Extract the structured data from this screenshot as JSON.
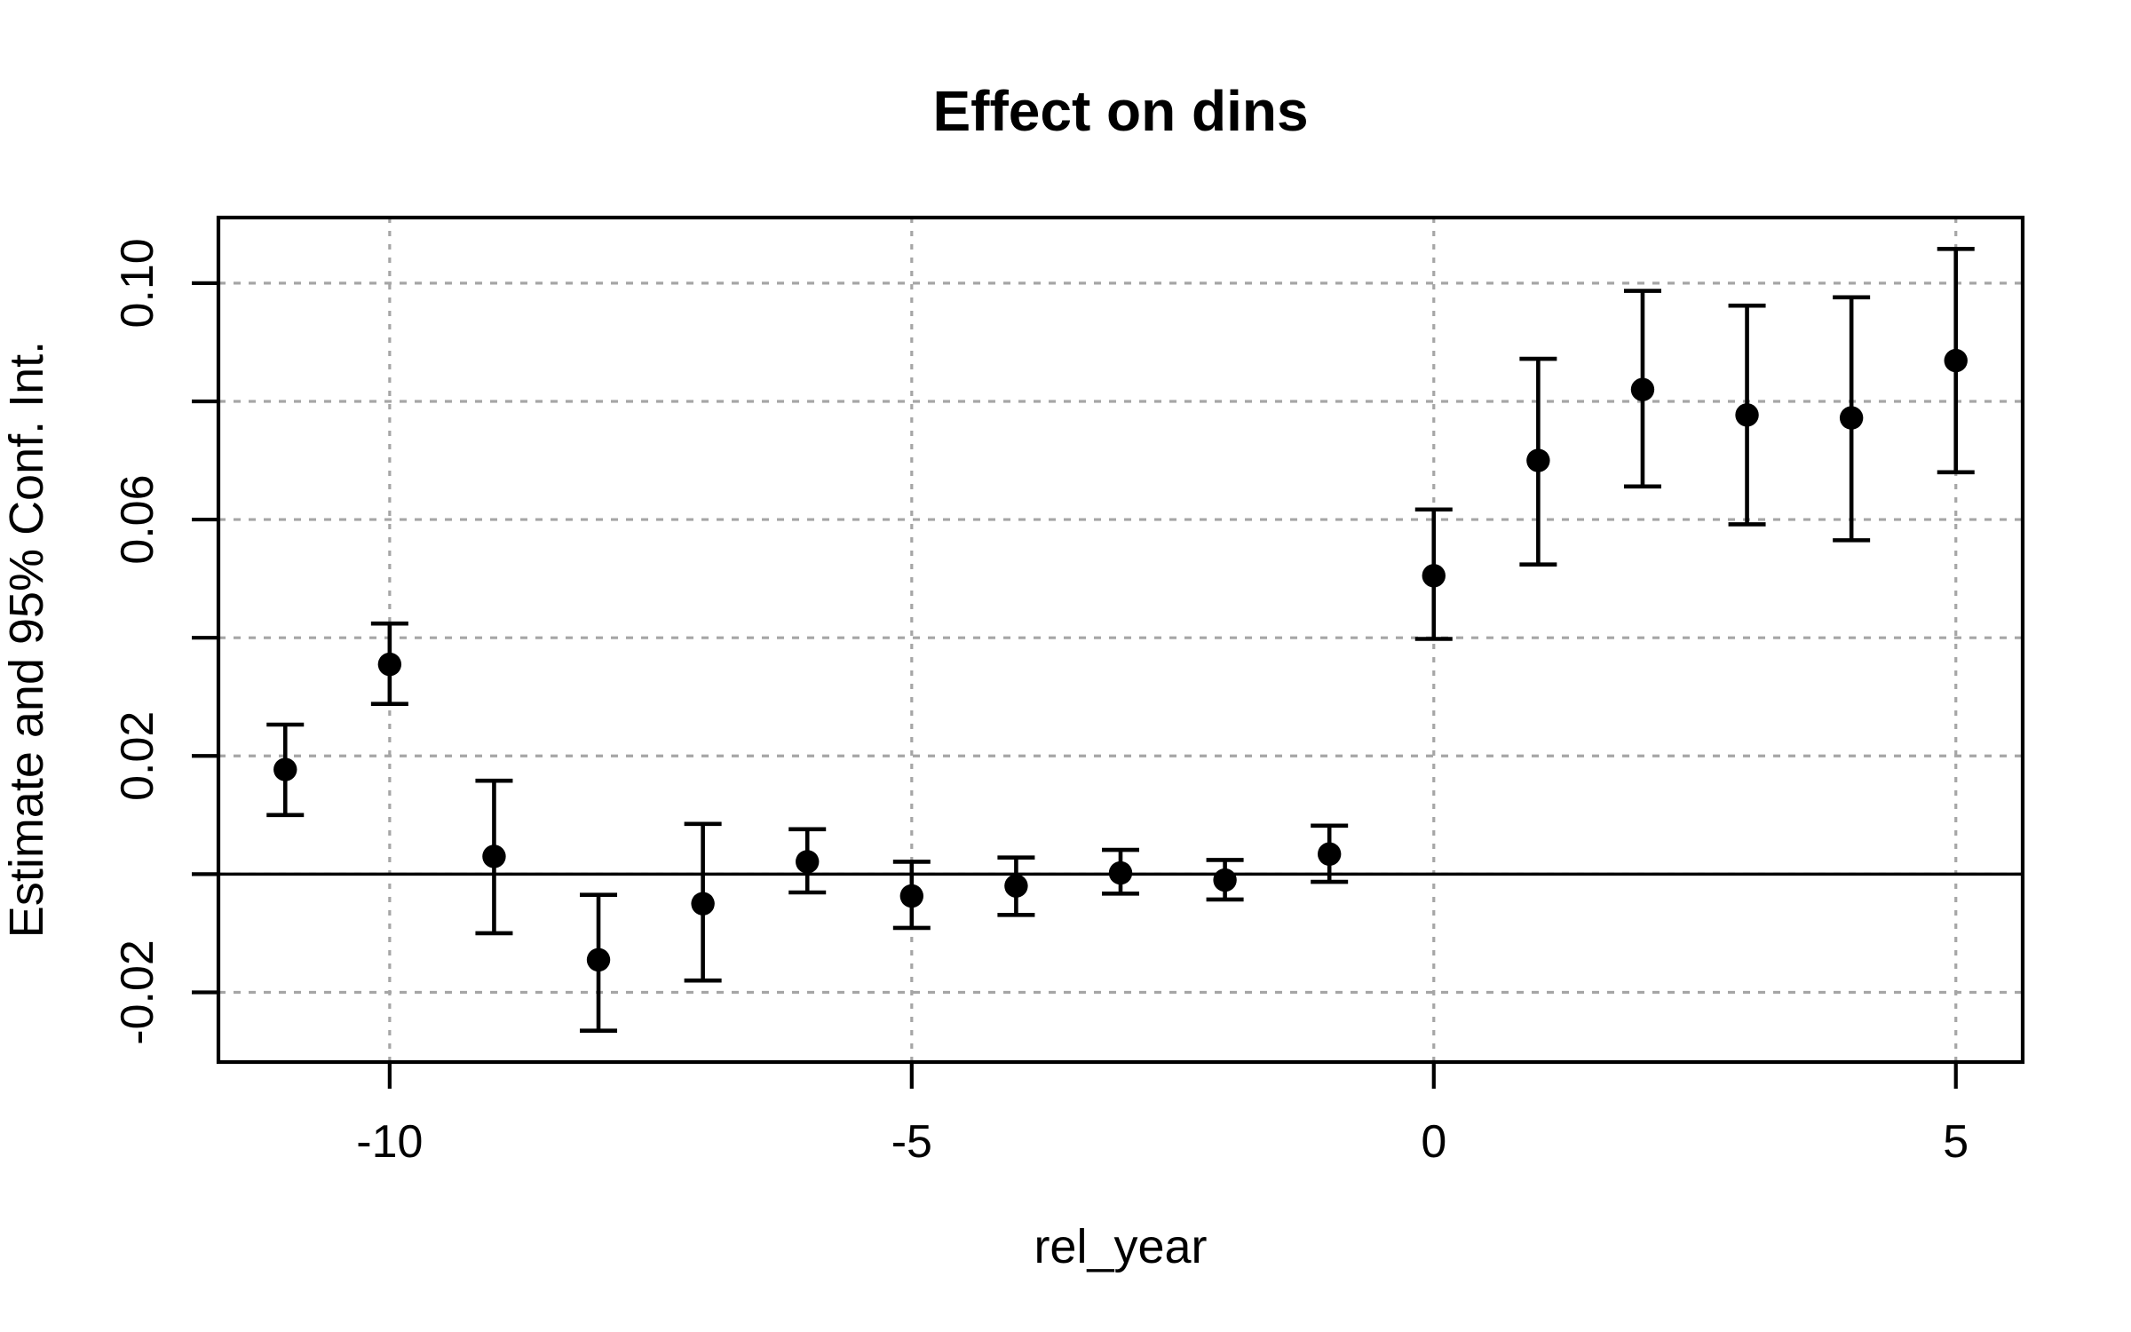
{
  "page": {
    "background": "#ffffff"
  },
  "chart_data": {
    "type": "scatter",
    "subtype": "error-bar-event-study",
    "title": "Effect on dins",
    "xlabel": "rel_year",
    "ylabel": "Estimate and 95% Conf. Int.",
    "x": [
      -11,
      -10,
      -9,
      -8,
      -7,
      -6,
      -5,
      -4,
      -3,
      -2,
      -1,
      0,
      1,
      2,
      3,
      4,
      5
    ],
    "series": [
      {
        "name": "estimate",
        "values": [
          0.0177,
          0.0355,
          0.003,
          -0.0145,
          -0.005,
          0.0021,
          -0.0037,
          -0.002,
          0.0002,
          -0.001,
          0.0034,
          0.0505,
          0.07,
          0.082,
          0.0777,
          0.0772,
          0.0869
        ]
      },
      {
        "name": "ci_lower_95",
        "values": [
          0.01,
          0.0288,
          -0.01,
          -0.0265,
          -0.018,
          -0.0031,
          -0.0091,
          -0.0069,
          -0.0033,
          -0.0043,
          -0.0013,
          0.0398,
          0.0524,
          0.0656,
          0.0592,
          0.0565,
          0.068
        ]
      },
      {
        "name": "ci_upper_95",
        "values": [
          0.0253,
          0.0424,
          0.0158,
          -0.0035,
          0.0085,
          0.0076,
          0.0021,
          0.0028,
          0.0041,
          0.0024,
          0.0082,
          0.0617,
          0.0872,
          0.0987,
          0.0962,
          0.0976,
          0.1058
        ]
      }
    ],
    "x_tick_values": [
      -10,
      -5,
      0,
      5
    ],
    "x_tick_labels": [
      "-10",
      "-5",
      "0",
      "5"
    ],
    "y_tick_values_all": [
      -0.02,
      0.0,
      0.02,
      0.04,
      0.06,
      0.08,
      0.1
    ],
    "y_tick_labeled_values": [
      -0.02,
      0.02,
      0.06,
      0.1
    ],
    "y_tick_labels": [
      "-0.02",
      "0.02",
      "0.06",
      "0.10"
    ],
    "xlim": [
      -11.64,
      5.64
    ],
    "ylim": [
      -0.0318,
      0.1111
    ],
    "grid": true,
    "zero_line_y": 0,
    "legend": "none",
    "marker": "filled-circle",
    "colors": {
      "points": "#000000",
      "error_bars": "#000000",
      "grid": "#a6a6a6",
      "zero_line": "#000000",
      "axis": "#000000",
      "text": "#000000",
      "background": "#ffffff"
    }
  }
}
